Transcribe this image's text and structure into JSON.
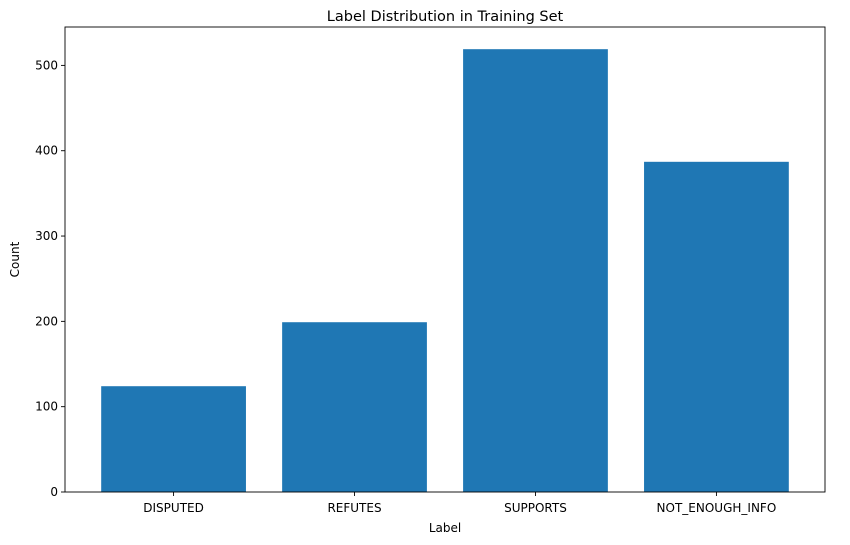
{
  "chart_data": {
    "type": "bar",
    "title": "Label Distribution in Training Set",
    "xlabel": "Label",
    "ylabel": "Count",
    "categories": [
      "DISPUTED",
      "REFUTES",
      "SUPPORTS",
      "NOT_ENOUGH_INFO"
    ],
    "values": [
      124,
      199,
      519,
      387
    ],
    "ylim": [
      0,
      545
    ],
    "yticks": [
      0,
      100,
      200,
      300,
      400,
      500
    ],
    "bar_color": "#1f77b4",
    "grid": false,
    "legend": false
  }
}
